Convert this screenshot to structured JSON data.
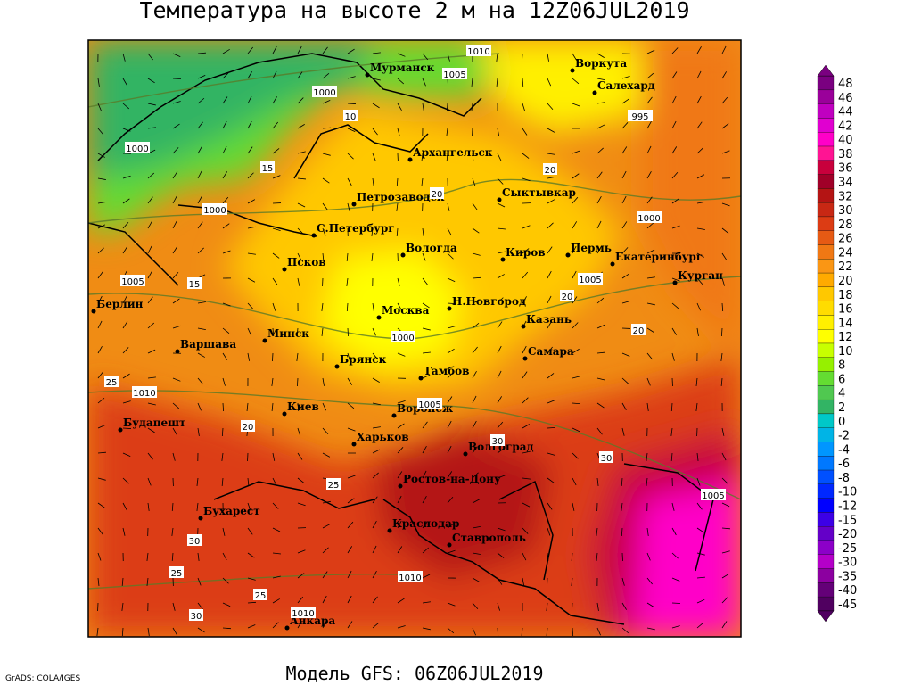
{
  "header": {
    "title": "Температура на высоте 2 м на 12Z06JUL2019"
  },
  "footer": {
    "model": "Модель GFS: 06Z06JUL2019",
    "credits": "GrADS: COLA/IGES"
  },
  "colorbar": {
    "levels": [
      {
        "value": 48,
        "color": "#7a0080"
      },
      {
        "value": 46,
        "color": "#9a009a"
      },
      {
        "value": 44,
        "color": "#c000c0"
      },
      {
        "value": 42,
        "color": "#e000d0"
      },
      {
        "value": 40,
        "color": "#ff00c8"
      },
      {
        "value": 38,
        "color": "#ff1493"
      },
      {
        "value": 36,
        "color": "#c8003c"
      },
      {
        "value": 34,
        "color": "#a00028"
      },
      {
        "value": 32,
        "color": "#b41414"
      },
      {
        "value": 30,
        "color": "#c82814"
      },
      {
        "value": 28,
        "color": "#dc3c14"
      },
      {
        "value": 26,
        "color": "#e65a14"
      },
      {
        "value": 24,
        "color": "#f07814"
      },
      {
        "value": 22,
        "color": "#fa9614"
      },
      {
        "value": 20,
        "color": "#ffaa00"
      },
      {
        "value": 18,
        "color": "#ffc800"
      },
      {
        "value": 16,
        "color": "#ffdc00"
      },
      {
        "value": 14,
        "color": "#fff000"
      },
      {
        "value": 12,
        "color": "#ffff00"
      },
      {
        "value": 10,
        "color": "#c8ff00"
      },
      {
        "value": 8,
        "color": "#96f000"
      },
      {
        "value": 6,
        "color": "#64dc32"
      },
      {
        "value": 4,
        "color": "#50c850"
      },
      {
        "value": 2,
        "color": "#32b464"
      },
      {
        "value": 0,
        "color": "#00c8c8"
      },
      {
        "value": -2,
        "color": "#00b4e6"
      },
      {
        "value": -4,
        "color": "#0096ff"
      },
      {
        "value": -6,
        "color": "#0078ff"
      },
      {
        "value": -8,
        "color": "#0050ff"
      },
      {
        "value": -10,
        "color": "#0028ff"
      },
      {
        "value": -12,
        "color": "#0000ff"
      },
      {
        "value": -15,
        "color": "#3c00e6"
      },
      {
        "value": -20,
        "color": "#6400c8"
      },
      {
        "value": -25,
        "color": "#8c00c8"
      },
      {
        "value": -30,
        "color": "#b400c8"
      },
      {
        "value": -35,
        "color": "#8c00a0"
      },
      {
        "value": -40,
        "color": "#640078"
      },
      {
        "value": -45,
        "color": "#500060"
      }
    ]
  },
  "cities": [
    "Мурманск",
    "Воркута",
    "Салехард",
    "Архангельск",
    "Петрозаводск",
    "Сыктывкар",
    "С.Петербург",
    "Вологда",
    "Киров",
    "Пермь",
    "Екатеринбург",
    "Курган",
    "Псков",
    "Берлин",
    "Н.Новгород",
    "Москва",
    "Казань",
    "Варшава",
    "Минск",
    "Самара",
    "Брянск",
    "Тамбов",
    "Киев",
    "Воронеж",
    "Будапешт",
    "Харьков",
    "Волгоград",
    "Ростов-на-Дону",
    "Бухарест",
    "Краснодар",
    "Ставрополь",
    "Анкара"
  ],
  "isobar_labels": [
    1010,
    1005,
    1000,
    995,
    1000,
    1000,
    1000,
    1005,
    1005,
    1000,
    1010,
    1005,
    1005,
    1010,
    1010
  ],
  "isotherm_labels": [
    10,
    15,
    20,
    20,
    15,
    20,
    20,
    25,
    30,
    30,
    25,
    30,
    20,
    25,
    30,
    25
  ]
}
